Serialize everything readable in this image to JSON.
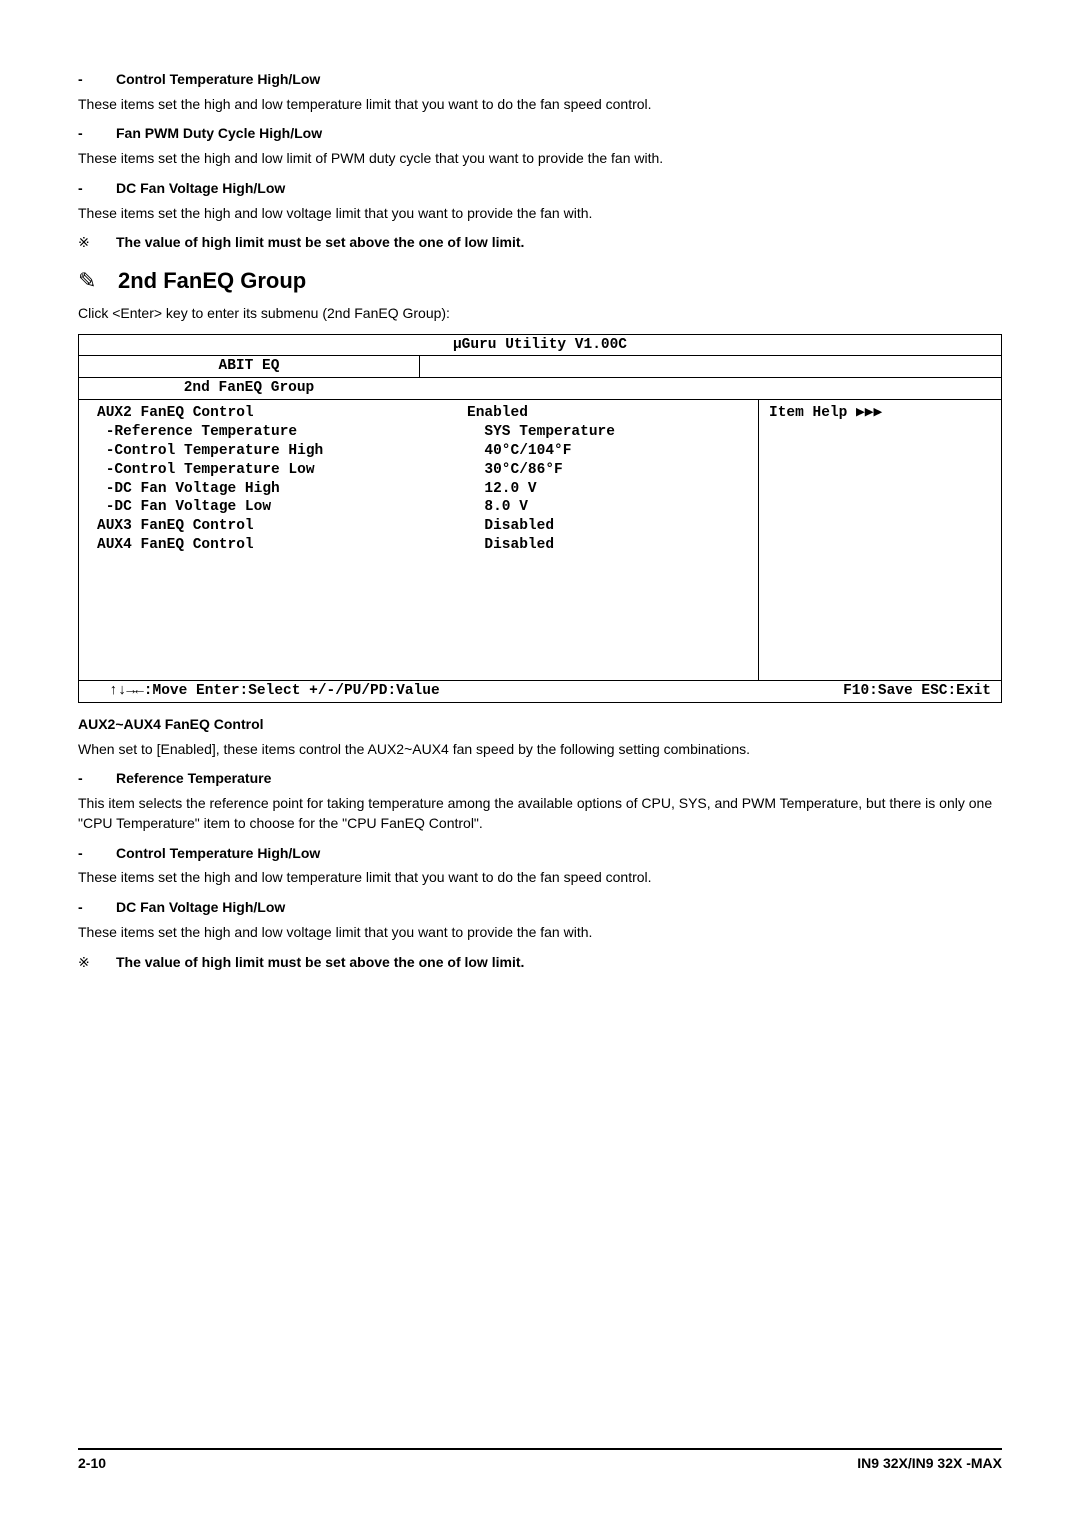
{
  "sec1": {
    "title": "Control Temperature High/Low",
    "body": "These items set the high and low temperature limit that you want to do the fan speed control."
  },
  "sec2": {
    "title": "Fan PWM Duty Cycle High/Low",
    "body": "These items set the high and low limit of PWM duty cycle that you want to provide the fan with."
  },
  "sec3": {
    "title": "DC Fan Voltage High/Low",
    "body": "These items set the high and low voltage limit that you want to provide the fan with."
  },
  "note_sym": "※",
  "note1": "The value of high limit must be set above the one of low limit.",
  "h2_sym": "✎",
  "h2": "2nd FanEQ Group",
  "h2_sub": "Click <Enter> key to enter its submenu (2nd FanEQ Group):",
  "bios": {
    "title": "μGuru Utility V1.00C",
    "sub_left": "ABIT EQ",
    "group_left": "2nd FanEQ Group",
    "rows": [
      {
        "label": "AUX2 FanEQ Control",
        "val": "Enabled"
      },
      {
        "label": " -Reference Temperature",
        "val": "  SYS Temperature"
      },
      {
        "label": " -Control Temperature High",
        "val": "  40°C/104°F"
      },
      {
        "label": " -Control Temperature Low",
        "val": "  30°C/86°F"
      },
      {
        "label": " -DC Fan Voltage High",
        "val": "  12.0 V"
      },
      {
        "label": " -DC Fan Voltage Low",
        "val": "  8.0 V"
      },
      {
        "label": "AUX3 FanEQ Control",
        "val": "  Disabled"
      },
      {
        "label": "AUX4 FanEQ Control",
        "val": "  Disabled"
      }
    ],
    "help": "Item Help ▶▶▶",
    "footer_left": "↑↓→←:Move  Enter:Select  +/-/PU/PD:Value",
    "footer_right": "F10:Save  ESC:Exit"
  },
  "sec4_head": "AUX2~AUX4 FanEQ Control",
  "sec4_body": "When set to [Enabled], these items control the AUX2~AUX4 fan speed by the following setting combinations.",
  "sec5": {
    "title": "Reference Temperature",
    "body": "This item selects the reference point for taking temperature among the available options of CPU, SYS, and PWM Temperature, but there is only one \"CPU Temperature\" item to choose for the \"CPU FanEQ Control\"."
  },
  "sec6": {
    "title": "Control Temperature High/Low",
    "body": "These items set the high and low temperature limit that you want to do the fan speed control."
  },
  "sec7": {
    "title": "DC Fan Voltage High/Low",
    "body": "These items set the high and low voltage limit that you want to provide the fan with."
  },
  "note2": "The value of high limit must be set above the one of low limit.",
  "footer": {
    "left": "2-10",
    "right": "IN9 32X/IN9 32X -MAX"
  }
}
